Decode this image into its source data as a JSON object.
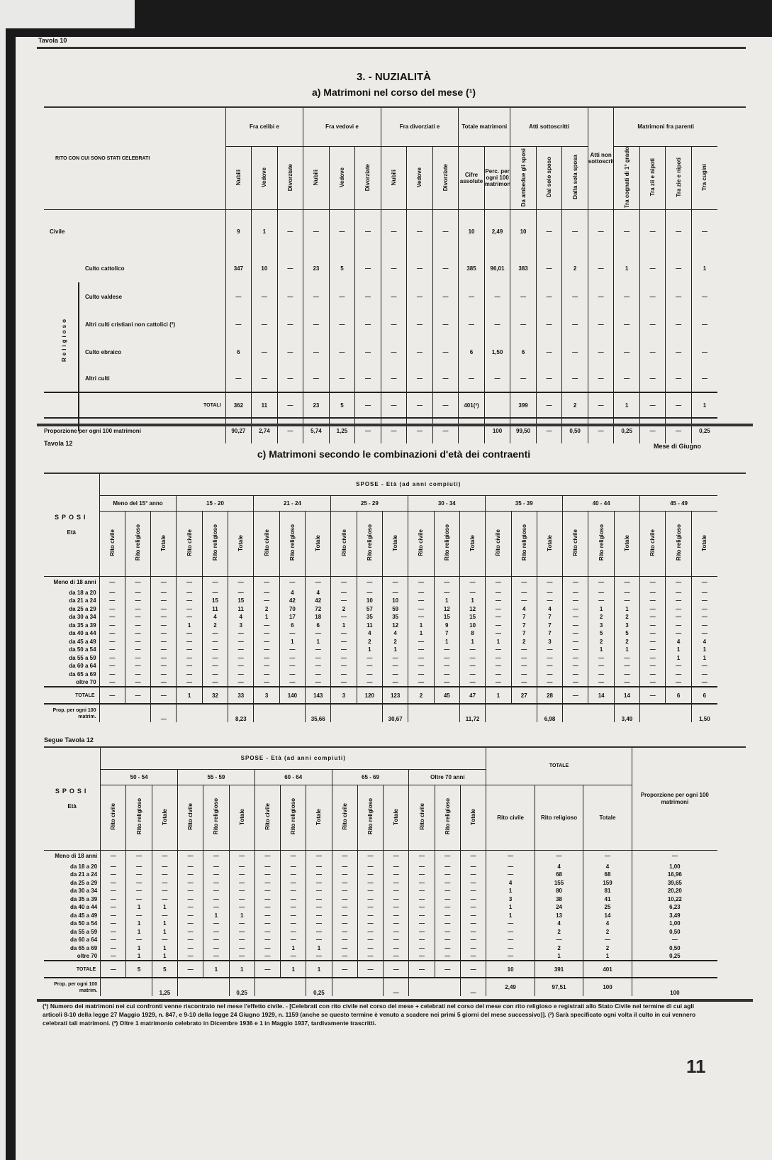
{
  "table_a": {
    "label": "Tavola 10",
    "title": "3. - NUZIALITÀ",
    "subtitle": "a) Matrimoni nel corso del mese (¹)",
    "header_label": "Rito con cui sono stati celebrati",
    "groups": [
      {
        "label": "Fra celibi e",
        "cols": [
          "Nubili",
          "Vedove",
          "Divorziate"
        ]
      },
      {
        "label": "Fra vedovi e",
        "cols": [
          "Nubili",
          "Vedove",
          "Divorziate"
        ]
      },
      {
        "label": "Fra divorziati e",
        "cols": [
          "Nubili",
          "Vedove",
          "Divorziate"
        ]
      },
      {
        "label": "Totale matrimoni",
        "cols": [
          "Cifre assolute",
          "Perc. per ogni 100 matrimoni"
        ]
      },
      {
        "label": "Atti sottoscritti",
        "cols": [
          "Da ambedue gli sposi",
          "Dal solo sposo",
          "Dalla sola sposa"
        ]
      },
      {
        "label": "Atti non sottoscritti",
        "cols": []
      },
      {
        "label": "Matrimoni fra parenti",
        "cols": [
          "Tra cognati di 1° grado",
          "Tra zii e nipoti",
          "Tra zie e nipoti",
          "Tra cugini"
        ]
      }
    ],
    "religious_label": "Religioso",
    "rows": [
      {
        "label": "Civile",
        "values": [
          "9",
          "1",
          "—",
          "—",
          "—",
          "—",
          "—",
          "—",
          "—",
          "10",
          "2,49",
          "10",
          "—",
          "—",
          "—",
          "—",
          "—",
          "—",
          "—"
        ]
      },
      {
        "label": "Culto cattolico",
        "values": [
          "347",
          "10",
          "—",
          "23",
          "5",
          "—",
          "—",
          "—",
          "—",
          "385",
          "96,01",
          "383",
          "—",
          "2",
          "—",
          "1",
          "—",
          "—",
          "1"
        ]
      },
      {
        "label": "Culto valdese",
        "values": [
          "—",
          "—",
          "—",
          "—",
          "—",
          "—",
          "—",
          "—",
          "—",
          "—",
          "—",
          "—",
          "—",
          "—",
          "—",
          "—",
          "—",
          "—",
          "—"
        ]
      },
      {
        "label": "Altri culti cristiani non cattolici (²)",
        "values": [
          "—",
          "—",
          "—",
          "—",
          "—",
          "—",
          "—",
          "—",
          "—",
          "—",
          "—",
          "—",
          "—",
          "—",
          "—",
          "—",
          "—",
          "—",
          "—"
        ]
      },
      {
        "label": "Culto ebraico",
        "values": [
          "6",
          "—",
          "—",
          "—",
          "—",
          "—",
          "—",
          "—",
          "—",
          "6",
          "1,50",
          "6",
          "—",
          "—",
          "—",
          "—",
          "—",
          "—",
          "—"
        ]
      },
      {
        "label": "Altri culti",
        "values": [
          "—",
          "—",
          "—",
          "—",
          "—",
          "—",
          "—",
          "—",
          "—",
          "—",
          "—",
          "—",
          "—",
          "—",
          "—",
          "—",
          "—",
          "—",
          "—"
        ]
      }
    ],
    "total": {
      "label": "Totali",
      "values": [
        "362",
        "11",
        "—",
        "23",
        "5",
        "—",
        "—",
        "—",
        "—",
        "401(³)",
        "",
        "399",
        "—",
        "2",
        "—",
        "1",
        "—",
        "—",
        "1"
      ]
    },
    "proportion": {
      "label": "Proporzione per ogni 100 matrimoni",
      "values": [
        "90,27",
        "2,74",
        "—",
        "5,74",
        "1,25",
        "—",
        "—",
        "—",
        "—",
        "",
        "100",
        "99,50",
        "—",
        "0,50",
        "—",
        "0,25",
        "—",
        "—",
        "0,25"
      ]
    }
  },
  "table_c": {
    "label": "Tavola 12",
    "month": "Mese di Giugno",
    "title": "c) Matrimoni secondo le combinazioni d'età dei contraenti",
    "spose_header": "SPOSE - Età (ad anni compiuti)",
    "sposi": "SPOSI",
    "eta": "Età",
    "sub_cols": [
      "Rito civile",
      "Rito religioso",
      "Totale"
    ],
    "groups": [
      "Meno del 15° anno",
      "15 - 20",
      "21 - 24",
      "25 - 29",
      "30 - 34",
      "35 - 39",
      "40 - 44",
      "45 - 49"
    ],
    "rows": [
      {
        "label": "Meno di 18 anni",
        "values": [
          "—",
          "—",
          "—",
          "—",
          "—",
          "—",
          "—",
          "—",
          "—",
          "—",
          "—",
          "—",
          "—",
          "—",
          "—",
          "—",
          "—",
          "—",
          "—",
          "—",
          "—",
          "—",
          "—",
          "—"
        ]
      },
      {
        "label": "da 18 a 20",
        "values": [
          "—",
          "—",
          "—",
          "—",
          "—",
          "—",
          "—",
          "4",
          "4",
          "—",
          "—",
          "—",
          "—",
          "—",
          "—",
          "—",
          "—",
          "—",
          "—",
          "—",
          "—",
          "—",
          "—",
          "—"
        ]
      },
      {
        "label": "da 21 a 24",
        "values": [
          "—",
          "—",
          "—",
          "—",
          "15",
          "15",
          "—",
          "42",
          "42",
          "—",
          "10",
          "10",
          "—",
          "1",
          "1",
          "—",
          "—",
          "—",
          "—",
          "—",
          "—",
          "—",
          "—",
          "—"
        ]
      },
      {
        "label": "da 25 a 29",
        "values": [
          "—",
          "—",
          "—",
          "—",
          "11",
          "11",
          "2",
          "70",
          "72",
          "2",
          "57",
          "59",
          "—",
          "12",
          "12",
          "—",
          "4",
          "4",
          "—",
          "1",
          "1",
          "—",
          "—",
          "—"
        ]
      },
      {
        "label": "da 30 a 34",
        "values": [
          "—",
          "—",
          "—",
          "—",
          "4",
          "4",
          "1",
          "17",
          "18",
          "—",
          "35",
          "35",
          "—",
          "15",
          "15",
          "—",
          "7",
          "7",
          "—",
          "2",
          "2",
          "—",
          "—",
          "—"
        ]
      },
      {
        "label": "da 35 a 39",
        "values": [
          "—",
          "—",
          "—",
          "1",
          "2",
          "3",
          "—",
          "6",
          "6",
          "1",
          "11",
          "12",
          "1",
          "9",
          "10",
          "—",
          "7",
          "7",
          "—",
          "3",
          "3",
          "—",
          "—",
          "—"
        ]
      },
      {
        "label": "da 40 a 44",
        "values": [
          "—",
          "—",
          "—",
          "—",
          "—",
          "—",
          "—",
          "—",
          "—",
          "—",
          "4",
          "4",
          "1",
          "7",
          "8",
          "—",
          "7",
          "7",
          "—",
          "5",
          "5",
          "—",
          "—",
          "—"
        ]
      },
      {
        "label": "da 45 a 49",
        "values": [
          "—",
          "—",
          "—",
          "—",
          "—",
          "—",
          "—",
          "1",
          "1",
          "—",
          "2",
          "2",
          "—",
          "1",
          "1",
          "1",
          "2",
          "3",
          "—",
          "2",
          "2",
          "—",
          "4",
          "4"
        ]
      },
      {
        "label": "da 50 a 54",
        "values": [
          "—",
          "—",
          "—",
          "—",
          "—",
          "—",
          "—",
          "—",
          "—",
          "—",
          "1",
          "1",
          "—",
          "—",
          "—",
          "—",
          "—",
          "—",
          "—",
          "1",
          "1",
          "—",
          "1",
          "1"
        ]
      },
      {
        "label": "da 55 a 59",
        "values": [
          "—",
          "—",
          "—",
          "—",
          "—",
          "—",
          "—",
          "—",
          "—",
          "—",
          "—",
          "—",
          "—",
          "—",
          "—",
          "—",
          "—",
          "—",
          "—",
          "—",
          "—",
          "—",
          "1",
          "1"
        ]
      },
      {
        "label": "da 60 a 64",
        "values": [
          "—",
          "—",
          "—",
          "—",
          "—",
          "—",
          "—",
          "—",
          "—",
          "—",
          "—",
          "—",
          "—",
          "—",
          "—",
          "—",
          "—",
          "—",
          "—",
          "—",
          "—",
          "—",
          "—",
          "—"
        ]
      },
      {
        "label": "da 65 a 69",
        "values": [
          "—",
          "—",
          "—",
          "—",
          "—",
          "—",
          "—",
          "—",
          "—",
          "—",
          "—",
          "—",
          "—",
          "—",
          "—",
          "—",
          "—",
          "—",
          "—",
          "—",
          "—",
          "—",
          "—",
          "—"
        ]
      },
      {
        "label": "oltre 70",
        "values": [
          "—",
          "—",
          "—",
          "—",
          "—",
          "—",
          "—",
          "—",
          "—",
          "—",
          "—",
          "—",
          "—",
          "—",
          "—",
          "—",
          "—",
          "—",
          "—",
          "—",
          "—",
          "—",
          "—",
          "—"
        ]
      }
    ],
    "total": {
      "label": "Totale",
      "values": [
        "—",
        "—",
        "—",
        "1",
        "32",
        "33",
        "3",
        "140",
        "143",
        "3",
        "120",
        "123",
        "2",
        "45",
        "47",
        "1",
        "27",
        "28",
        "—",
        "14",
        "14",
        "—",
        "6",
        "6"
      ]
    },
    "proportion": {
      "label": "Prop. per ogni 100 matrim.",
      "values": [
        "—",
        "8,23",
        "35,66",
        "30,67",
        "11,72",
        "6,98",
        "3,49",
        "1,50"
      ]
    }
  },
  "table_c2": {
    "label": "Segue Tavola 12",
    "spose_header": "SPOSE - Età (ad anni compiuti)",
    "sposi": "SPOSI",
    "eta": "Età",
    "sub_cols": [
      "Rito civile",
      "Rito religioso",
      "Totale"
    ],
    "groups": [
      "50 - 54",
      "55 - 59",
      "60 - 64",
      "65 - 69",
      "Oltre 70 anni"
    ],
    "total_header": "Totale",
    "total_cols": [
      "Rito civile",
      "Rito religioso",
      "Totale"
    ],
    "prop_header": "Proporzione per ogni 100 matrimoni",
    "rows": [
      {
        "label": "Meno di 18 anni",
        "values": [
          "—",
          "—",
          "—",
          "—",
          "—",
          "—",
          "—",
          "—",
          "—",
          "—",
          "—",
          "—",
          "—",
          "—",
          "—",
          "—",
          "—",
          "—",
          "—"
        ]
      },
      {
        "label": "da 18 a 20",
        "values": [
          "—",
          "—",
          "—",
          "—",
          "—",
          "—",
          "—",
          "—",
          "—",
          "—",
          "—",
          "—",
          "—",
          "—",
          "—",
          "—",
          "4",
          "4",
          "1,00"
        ]
      },
      {
        "label": "da 21 a 24",
        "values": [
          "—",
          "—",
          "—",
          "—",
          "—",
          "—",
          "—",
          "—",
          "—",
          "—",
          "—",
          "—",
          "—",
          "—",
          "—",
          "—",
          "68",
          "68",
          "16,96"
        ]
      },
      {
        "label": "da 25 a 29",
        "values": [
          "—",
          "—",
          "—",
          "—",
          "—",
          "—",
          "—",
          "—",
          "—",
          "—",
          "—",
          "—",
          "—",
          "—",
          "—",
          "4",
          "155",
          "159",
          "39,65"
        ]
      },
      {
        "label": "da 30 a 34",
        "values": [
          "—",
          "—",
          "—",
          "—",
          "—",
          "—",
          "—",
          "—",
          "—",
          "—",
          "—",
          "—",
          "—",
          "—",
          "—",
          "1",
          "80",
          "81",
          "20,20"
        ]
      },
      {
        "label": "da 35 a 39",
        "values": [
          "—",
          "—",
          "—",
          "—",
          "—",
          "—",
          "—",
          "—",
          "—",
          "—",
          "—",
          "—",
          "—",
          "—",
          "—",
          "3",
          "38",
          "41",
          "10,22"
        ]
      },
      {
        "label": "da 40 a 44",
        "values": [
          "—",
          "1",
          "1",
          "—",
          "—",
          "—",
          "—",
          "—",
          "—",
          "—",
          "—",
          "—",
          "—",
          "—",
          "—",
          "1",
          "24",
          "25",
          "6,23"
        ]
      },
      {
        "label": "da 45 a 49",
        "values": [
          "—",
          "—",
          "—",
          "—",
          "1",
          "1",
          "—",
          "—",
          "—",
          "—",
          "—",
          "—",
          "—",
          "—",
          "—",
          "1",
          "13",
          "14",
          "3,49"
        ]
      },
      {
        "label": "da 50 a 54",
        "values": [
          "—",
          "1",
          "1",
          "—",
          "—",
          "—",
          "—",
          "—",
          "—",
          "—",
          "—",
          "—",
          "—",
          "—",
          "—",
          "—",
          "4",
          "4",
          "1,00"
        ]
      },
      {
        "label": "da 55 a 59",
        "values": [
          "—",
          "1",
          "1",
          "—",
          "—",
          "—",
          "—",
          "—",
          "—",
          "—",
          "—",
          "—",
          "—",
          "—",
          "—",
          "—",
          "2",
          "2",
          "0,50"
        ]
      },
      {
        "label": "da 60 a 64",
        "values": [
          "—",
          "—",
          "—",
          "—",
          "—",
          "—",
          "—",
          "—",
          "—",
          "—",
          "—",
          "—",
          "—",
          "—",
          "—",
          "—",
          "—",
          "—",
          "—"
        ]
      },
      {
        "label": "da 65 a 69",
        "values": [
          "—",
          "1",
          "1",
          "—",
          "—",
          "—",
          "—",
          "1",
          "1",
          "—",
          "—",
          "—",
          "—",
          "—",
          "—",
          "—",
          "2",
          "2",
          "0,50"
        ]
      },
      {
        "label": "oltre 70",
        "values": [
          "—",
          "1",
          "1",
          "—",
          "—",
          "—",
          "—",
          "—",
          "—",
          "—",
          "—",
          "—",
          "—",
          "—",
          "—",
          "—",
          "1",
          "1",
          "0,25"
        ]
      }
    ],
    "total": {
      "label": "Totale",
      "values": [
        "—",
        "5",
        "5",
        "—",
        "1",
        "1",
        "—",
        "1",
        "1",
        "—",
        "—",
        "—",
        "—",
        "—",
        "—",
        "10",
        "391",
        "401",
        ""
      ]
    },
    "proportion": {
      "label": "Prop. per ogni 100 matrim.",
      "values": [
        "1,25",
        "0,25",
        "0,25",
        "—",
        "—",
        "2,49",
        "97,51",
        "100",
        "100"
      ]
    }
  },
  "footnote": "(¹) Numero dei matrimoni nei cui confronti venne riscontrato nel mese l'effetto civile. - [Celebrati con rito civile nel corso del mese + celebrati nel corso del mese con rito religioso e registrati allo Stato Civile nel termine di cui agli articoli 8-10 della legge 27 Maggio 1929, n. 847, e 9-10 della legge 24 Giugno 1929, n. 1159 (anche se questo termine è venuto a scadere nei primi 5 giorni del mese successivo)]. (²) Sarà specificato ogni volta il culto in cui vennero celebrati tali matrimoni. (³) Oltre 1 matrimonio celebrato in Dicembre 1936 e 1 in Maggio 1937, tardivamente trascritti.",
  "page_number": "11"
}
